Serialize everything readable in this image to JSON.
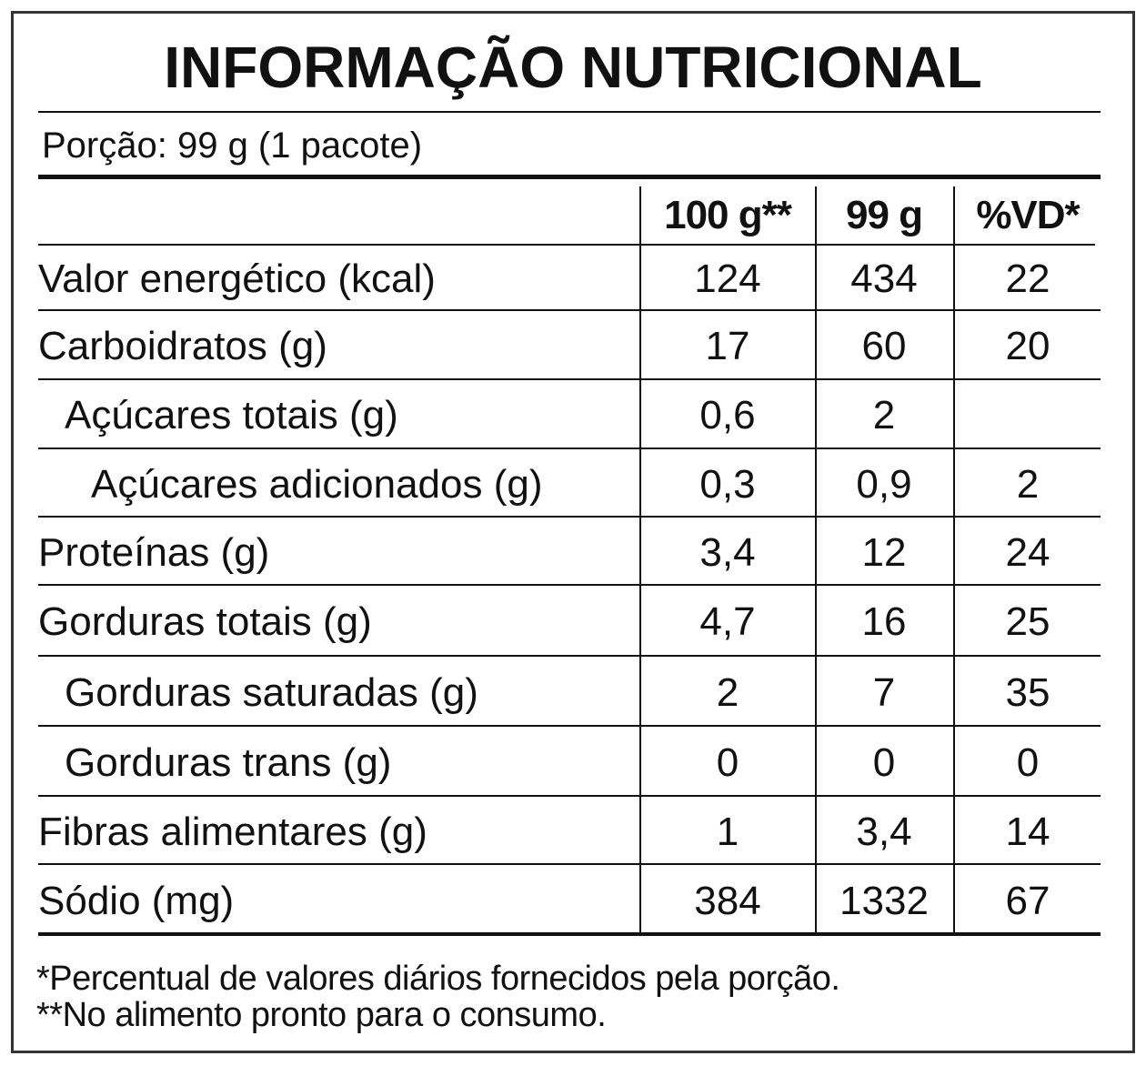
{
  "title": "INFORMAÇÃO NUTRICIONAL",
  "portion": "Porção: 99 g (1 pacote)",
  "table": {
    "header": [
      "100 g**",
      "99 g",
      "%VD*"
    ],
    "rows": [
      [
        "Valor energético (kcal)",
        "124",
        "434",
        "22"
      ],
      [
        "Carboidratos (g)",
        "17",
        "60",
        "20"
      ],
      [
        "Açúcares totais (g)",
        "0,6",
        "2",
        null
      ],
      [
        "Açúcares adicionados (g)",
        "0,3",
        "0,9",
        "2"
      ],
      [
        "Proteínas (g)",
        "3,4",
        "12",
        "24"
      ],
      [
        "Gorduras totais (g)",
        "4,7",
        "16",
        "25"
      ],
      [
        "Gorduras saturadas (g)",
        "2",
        "7",
        "35"
      ],
      [
        "Gorduras trans (g)",
        "0",
        "0",
        "0"
      ],
      [
        "Fibras alimentares (g)",
        "1",
        "3,4",
        "14"
      ],
      [
        "Sódio (mg)",
        "384",
        "1332",
        "67"
      ]
    ]
  },
  "footnotes": [
    "*Percentual de valores diários fornecidos pela porção.",
    "**No alimento pronto para o consumo."
  ]
}
